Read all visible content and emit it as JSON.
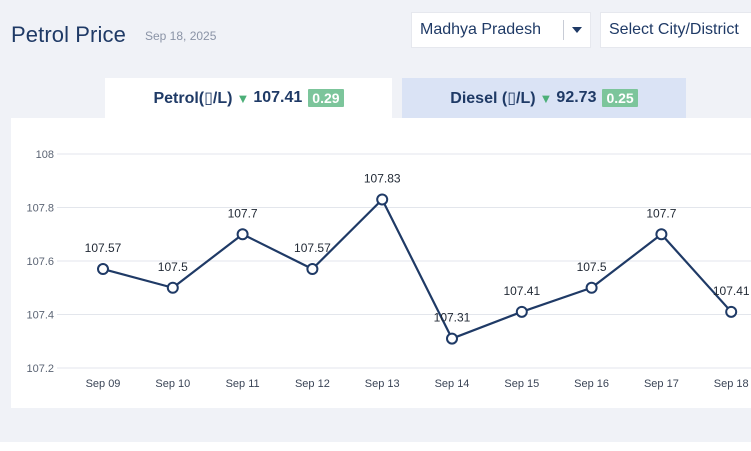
{
  "header": {
    "title": "Petrol Price",
    "date": "Sep 18, 2025",
    "state_select": {
      "value": "Madhya Pradesh"
    },
    "city_select": {
      "placeholder": "Select City/District"
    }
  },
  "tabs": [
    {
      "label": "Petrol(▯/L)",
      "price": "107.41",
      "change": "0.29",
      "direction": "down",
      "active": true
    },
    {
      "label": "Diesel (▯/L)",
      "price": "92.73",
      "change": "0.25",
      "direction": "down",
      "active": false
    }
  ],
  "colors": {
    "line": "#1f3a66",
    "decrease_badge": "#7cc59b",
    "active_tab": "#ffffff",
    "inactive_tab": "#dae3f5"
  },
  "icons": {
    "dropdown": "caret-down-icon",
    "trend": "triangle-down-icon"
  },
  "chart_data": {
    "type": "line",
    "title": "",
    "xlabel": "",
    "ylabel": "",
    "categories": [
      "Sep 09",
      "Sep 10",
      "Sep 11",
      "Sep 12",
      "Sep 13",
      "Sep 14",
      "Sep 15",
      "Sep 16",
      "Sep 17",
      "Sep 18"
    ],
    "series": [
      {
        "values": [
          107.57,
          107.5,
          107.7,
          107.57,
          107.83,
          107.31,
          107.41,
          107.5,
          107.7,
          107.41
        ]
      }
    ],
    "data_labels": [
      "107.57",
      "107.5",
      "107.7",
      "107.57",
      "107.83",
      "107.31",
      "107.41",
      "107.5",
      "107.7",
      "107.41"
    ],
    "yticks": [
      "107.2",
      "107.4",
      "107.6",
      "107.8",
      "108"
    ],
    "ytick_values": [
      107.2,
      107.4,
      107.6,
      107.8,
      108
    ],
    "ylim": [
      107.2,
      108
    ],
    "grid": true,
    "legend": "none"
  }
}
